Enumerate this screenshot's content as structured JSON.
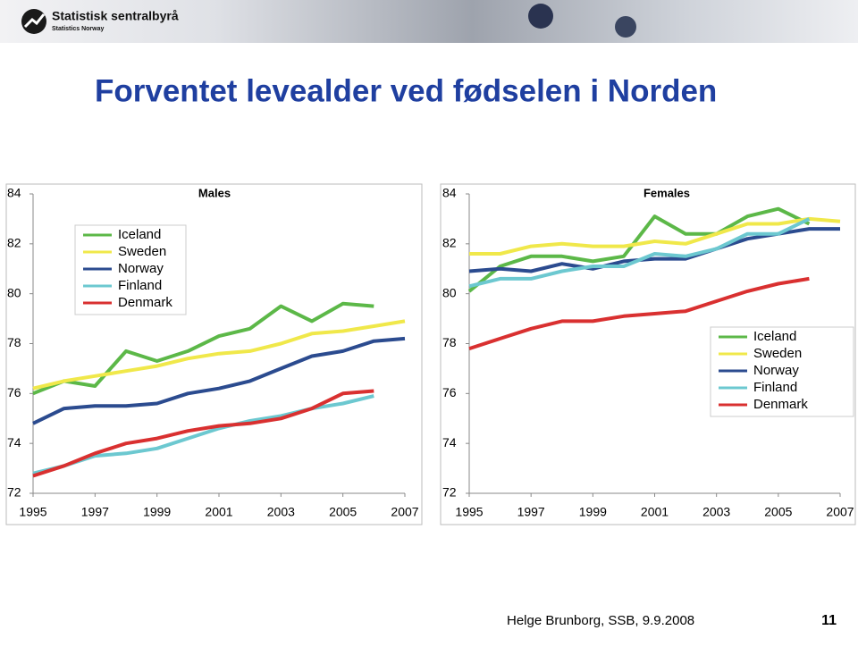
{
  "slide": {
    "brand": "Statistisk sentralbyrå",
    "brand_sub": "Statistics Norway",
    "title": "Forventet levealder ved fødselen i Norden",
    "footer": "Helge Brunborg, SSB, 9.9.2008",
    "page": "11"
  },
  "chart_data": [
    {
      "type": "line",
      "title": "Males",
      "legend": "upper left",
      "x": [
        1995,
        1996,
        1997,
        1998,
        1999,
        2000,
        2001,
        2002,
        2003,
        2004,
        2005,
        2006,
        2007
      ],
      "xlim": [
        1995,
        2007
      ],
      "xticks": [
        1995,
        1997,
        1999,
        2001,
        2003,
        2005,
        2007
      ],
      "ylim": [
        72,
        84
      ],
      "yticks": [
        72,
        74,
        76,
        78,
        80,
        82,
        84
      ],
      "series": [
        {
          "name": "Iceland",
          "color": "#5cb848",
          "values": [
            76.0,
            76.5,
            76.3,
            77.7,
            77.3,
            77.7,
            78.3,
            78.6,
            79.5,
            78.9,
            79.6,
            79.5,
            null
          ]
        },
        {
          "name": "Sweden",
          "color": "#f0e84a",
          "values": [
            76.2,
            76.5,
            76.7,
            76.9,
            77.1,
            77.4,
            77.6,
            77.7,
            78.0,
            78.4,
            78.5,
            78.7,
            78.9
          ]
        },
        {
          "name": "Norway",
          "color": "#2b4b8f",
          "values": [
            74.8,
            75.4,
            75.5,
            75.5,
            75.6,
            76.0,
            76.2,
            76.5,
            77.0,
            77.5,
            77.7,
            78.1,
            78.2
          ]
        },
        {
          "name": "Finland",
          "color": "#6cc8d0",
          "values": [
            72.8,
            73.1,
            73.5,
            73.6,
            73.8,
            74.2,
            74.6,
            74.9,
            75.1,
            75.4,
            75.6,
            75.9,
            null
          ]
        },
        {
          "name": "Denmark",
          "color": "#d93030",
          "values": [
            72.7,
            73.1,
            73.6,
            74.0,
            74.2,
            74.5,
            74.7,
            74.8,
            75.0,
            75.4,
            76.0,
            76.1,
            null
          ]
        }
      ]
    },
    {
      "type": "line",
      "title": "Females",
      "legend": "center right",
      "x": [
        1995,
        1996,
        1997,
        1998,
        1999,
        2000,
        2001,
        2002,
        2003,
        2004,
        2005,
        2006,
        2007
      ],
      "xlim": [
        1995,
        2007
      ],
      "xticks": [
        1995,
        1997,
        1999,
        2001,
        2003,
        2005,
        2007
      ],
      "ylim": [
        72,
        84
      ],
      "yticks": [
        72,
        74,
        76,
        78,
        80,
        82,
        84
      ],
      "series": [
        {
          "name": "Iceland",
          "color": "#5cb848",
          "values": [
            80.1,
            81.1,
            81.5,
            81.5,
            81.3,
            81.5,
            83.1,
            82.4,
            82.4,
            83.1,
            83.4,
            82.8,
            null
          ]
        },
        {
          "name": "Sweden",
          "color": "#f0e84a",
          "values": [
            81.6,
            81.6,
            81.9,
            82.0,
            81.9,
            81.9,
            82.1,
            82.0,
            82.4,
            82.8,
            82.8,
            83.0,
            82.9
          ]
        },
        {
          "name": "Norway",
          "color": "#2b4b8f",
          "values": [
            80.9,
            81.0,
            80.9,
            81.2,
            81.0,
            81.3,
            81.4,
            81.4,
            81.8,
            82.2,
            82.4,
            82.6,
            82.6
          ]
        },
        {
          "name": "Finland",
          "color": "#6cc8d0",
          "values": [
            80.3,
            80.6,
            80.6,
            80.9,
            81.1,
            81.1,
            81.6,
            81.5,
            81.8,
            82.4,
            82.4,
            83.0,
            null
          ]
        },
        {
          "name": "Denmark",
          "color": "#d93030",
          "values": [
            77.8,
            78.2,
            78.6,
            78.9,
            78.9,
            79.1,
            79.2,
            79.3,
            79.7,
            80.1,
            80.4,
            80.6,
            null
          ]
        }
      ]
    }
  ]
}
